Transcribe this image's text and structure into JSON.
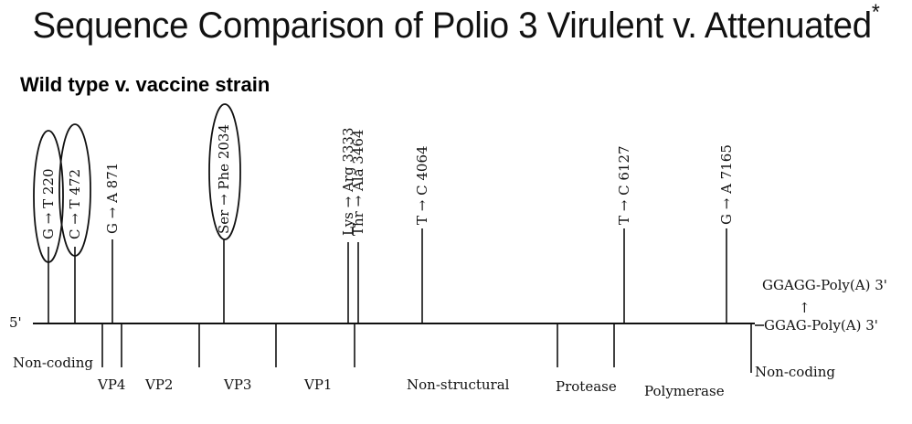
{
  "title": "Sequence Comparison of Polio 3 Virulent v. Attenuated",
  "title_mark": "*",
  "subtitle": "Wild type v. vaccine strain",
  "genome": {
    "five_prime": "5'",
    "three_prime_end_lower": "GGAG-Poly(A) 3'",
    "three_prime_end_upper": "GGAGG-Poly(A) 3'",
    "arrow": "↑"
  },
  "mutations": [
    {
      "label": "G → T 220",
      "position": 220,
      "circled": true
    },
    {
      "label": "C → T 472",
      "position": 472,
      "circled": true
    },
    {
      "label": "G → A 871",
      "position": 871,
      "circled": false
    },
    {
      "label": "Ser → Phe 2034",
      "position": 2034,
      "circled": true
    },
    {
      "label": "Lys → Arg 3333",
      "position": 3333,
      "circled": false
    },
    {
      "label": "Thr → Ala 3464",
      "position": 3464,
      "circled": false
    },
    {
      "label": "T → C 4064",
      "position": 4064,
      "circled": false
    },
    {
      "label": "T → C 6127",
      "position": 6127,
      "circled": false
    },
    {
      "label": "G → A 7165",
      "position": 7165,
      "circled": false
    }
  ],
  "regions": [
    "Non-coding",
    "VP4",
    "VP2",
    "VP3",
    "VP1",
    "Non-structural",
    "Protease",
    "Polymerase",
    "Non-coding"
  ]
}
